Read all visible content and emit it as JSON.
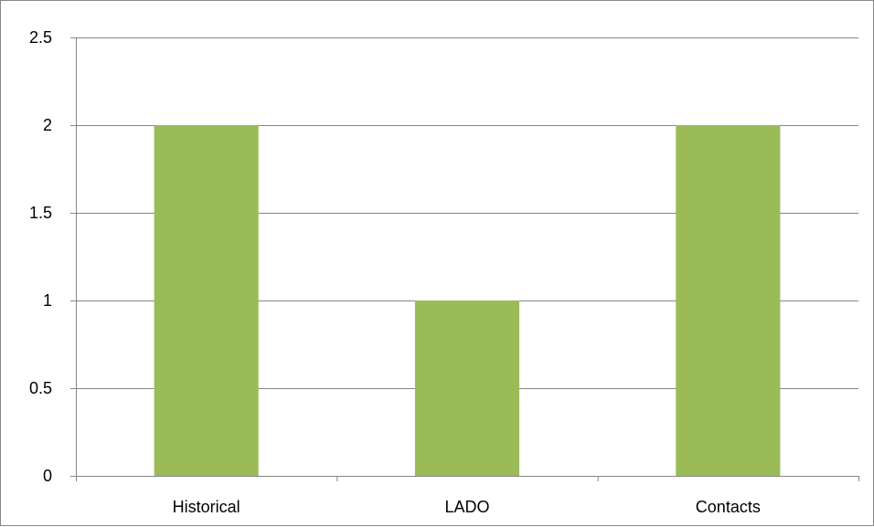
{
  "chart_data": {
    "type": "bar",
    "categories": [
      "Historical",
      "LADO",
      "Contacts"
    ],
    "values": [
      2,
      1,
      2
    ],
    "title": "",
    "xlabel": "",
    "ylabel": "",
    "ylim": [
      0,
      2.5
    ],
    "yticks": [
      "0",
      "0.5",
      "1",
      "1.5",
      "2",
      "2.5"
    ],
    "grid": true,
    "legend": "none",
    "bar_color": "#9bbb59",
    "gridline_color": "#868686"
  }
}
